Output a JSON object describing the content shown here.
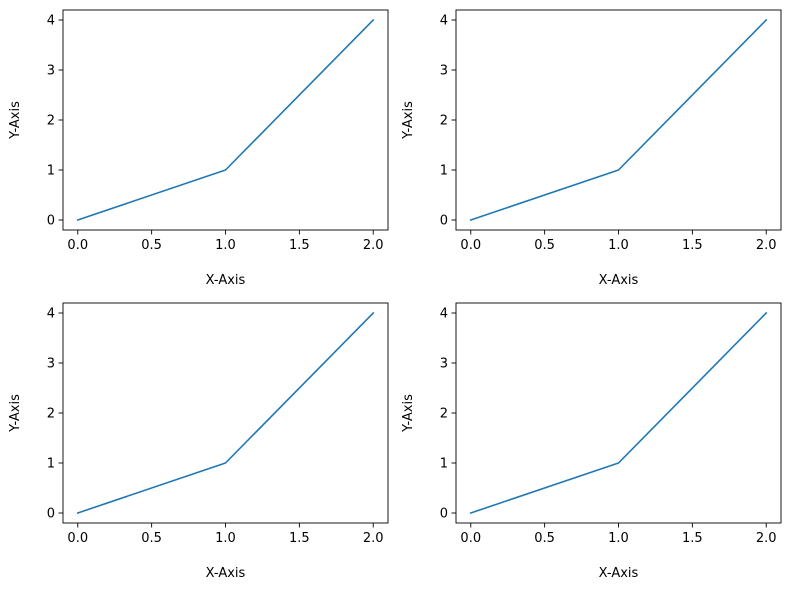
{
  "colors": {
    "line": "#1f77b4",
    "axes": "#000000",
    "background": "#ffffff"
  },
  "chart_data": [
    {
      "type": "line",
      "title": "",
      "xlabel": "X-Axis",
      "ylabel": "Y-Axis",
      "x": [
        0,
        1,
        2
      ],
      "series": [
        {
          "values": [
            0,
            1,
            4
          ]
        }
      ],
      "xlim": [
        -0.1,
        2.1
      ],
      "ylim": [
        -0.2,
        4.2
      ],
      "xticks": [
        0,
        0.5,
        1,
        1.5,
        2
      ],
      "xtick_labels": [
        "0.0",
        "0.5",
        "1.0",
        "1.5",
        "2.0"
      ],
      "yticks": [
        0,
        1,
        2,
        3,
        4
      ],
      "ytick_labels": [
        "0",
        "1",
        "2",
        "3",
        "4"
      ],
      "grid": false
    },
    {
      "type": "line",
      "title": "",
      "xlabel": "X-Axis",
      "ylabel": "Y-Axis",
      "x": [
        0,
        1,
        2
      ],
      "series": [
        {
          "values": [
            0,
            1,
            4
          ]
        }
      ],
      "xlim": [
        -0.1,
        2.1
      ],
      "ylim": [
        -0.2,
        4.2
      ],
      "xticks": [
        0,
        0.5,
        1,
        1.5,
        2
      ],
      "xtick_labels": [
        "0.0",
        "0.5",
        "1.0",
        "1.5",
        "2.0"
      ],
      "yticks": [
        0,
        1,
        2,
        3,
        4
      ],
      "ytick_labels": [
        "0",
        "1",
        "2",
        "3",
        "4"
      ],
      "grid": false
    },
    {
      "type": "line",
      "title": "",
      "xlabel": "X-Axis",
      "ylabel": "Y-Axis",
      "x": [
        0,
        1,
        2
      ],
      "series": [
        {
          "values": [
            0,
            1,
            4
          ]
        }
      ],
      "xlim": [
        -0.1,
        2.1
      ],
      "ylim": [
        -0.2,
        4.2
      ],
      "xticks": [
        0,
        0.5,
        1,
        1.5,
        2
      ],
      "xtick_labels": [
        "0.0",
        "0.5",
        "1.0",
        "1.5",
        "2.0"
      ],
      "yticks": [
        0,
        1,
        2,
        3,
        4
      ],
      "ytick_labels": [
        "0",
        "1",
        "2",
        "3",
        "4"
      ],
      "grid": false
    },
    {
      "type": "line",
      "title": "",
      "xlabel": "X-Axis",
      "ylabel": "Y-Axis",
      "x": [
        0,
        1,
        2
      ],
      "series": [
        {
          "values": [
            0,
            1,
            4
          ]
        }
      ],
      "xlim": [
        -0.1,
        2.1
      ],
      "ylim": [
        -0.2,
        4.2
      ],
      "xticks": [
        0,
        0.5,
        1,
        1.5,
        2
      ],
      "xtick_labels": [
        "0.0",
        "0.5",
        "1.0",
        "1.5",
        "2.0"
      ],
      "yticks": [
        0,
        1,
        2,
        3,
        4
      ],
      "ytick_labels": [
        "0",
        "1",
        "2",
        "3",
        "4"
      ],
      "grid": false
    }
  ]
}
